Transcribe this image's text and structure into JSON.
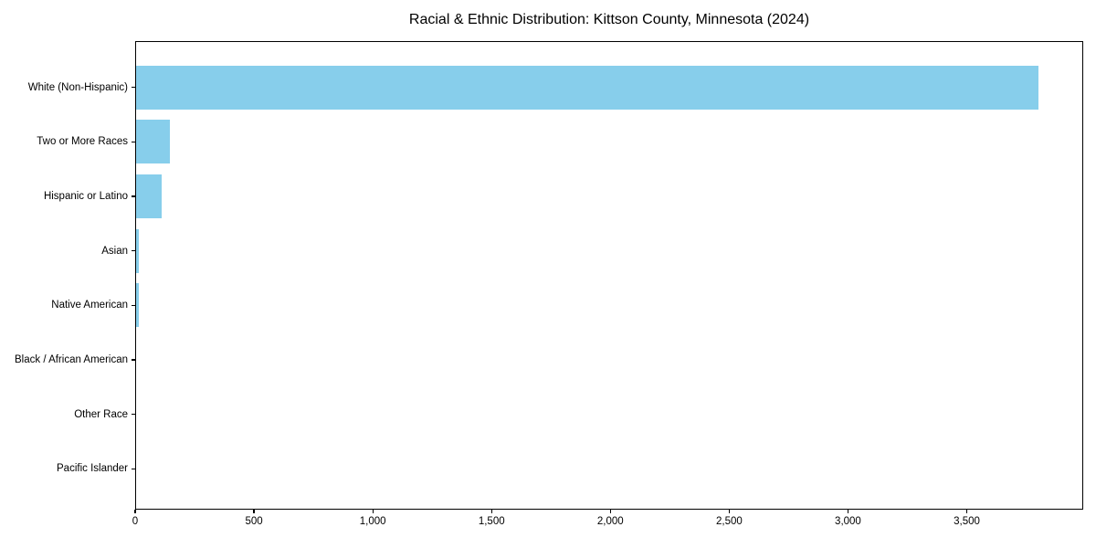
{
  "chart_data": {
    "type": "bar",
    "orientation": "horizontal",
    "title": "Racial & Ethnic Distribution: Kittson County, Minnesota (2024)",
    "categories": [
      "White (Non-Hispanic)",
      "Two or More Races",
      "Hispanic or Latino",
      "Asian",
      "Native American",
      "Black / African American",
      "Other Race",
      "Pacific Islander"
    ],
    "values": [
      3800,
      145,
      110,
      17,
      14,
      4,
      3,
      0
    ],
    "xlabel": "",
    "ylabel": "",
    "xlim": [
      0,
      3990
    ],
    "xticks": [
      0,
      500,
      1000,
      1500,
      2000,
      2500,
      3000,
      3500
    ],
    "xtick_labels": [
      "0",
      "500",
      "1,000",
      "1,500",
      "2,000",
      "2,500",
      "3,000",
      "3,500"
    ],
    "bar_color": "#87CEEB",
    "axis_color": "#000000",
    "text_color": "#000000",
    "background_color": "#ffffff",
    "grid": false,
    "legend": null
  }
}
